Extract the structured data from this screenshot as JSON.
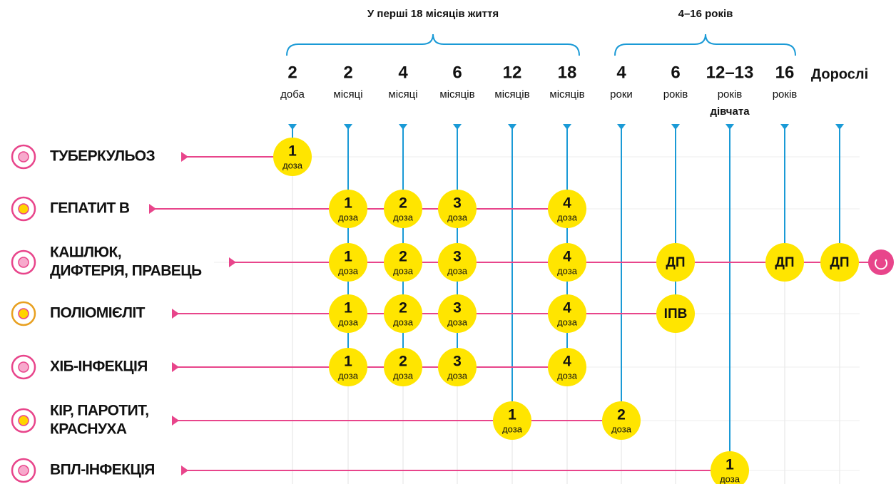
{
  "groups": [
    {
      "label": "У перші 18 місяців життя"
    },
    {
      "label": "4–16 років"
    }
  ],
  "columns": [
    {
      "number": "2",
      "unit": "доба"
    },
    {
      "number": "2",
      "unit": "місяці"
    },
    {
      "number": "4",
      "unit": "місяці"
    },
    {
      "number": "6",
      "unit": "місяців"
    },
    {
      "number": "12",
      "unit": "місяців"
    },
    {
      "number": "18",
      "unit": "місяців"
    },
    {
      "number": "4",
      "unit": "роки"
    },
    {
      "number": "6",
      "unit": "років"
    },
    {
      "number": "12–13",
      "unit": "років",
      "note": "дівчата"
    },
    {
      "number": "16",
      "unit": "років"
    },
    {
      "number": "Дорослі"
    }
  ],
  "rows": [
    {
      "name": [
        "ТУБЕРКУЛЬОЗ"
      ],
      "doses": [
        {
          "number": "1",
          "label": "доза"
        },
        null,
        null,
        null,
        null,
        null,
        null,
        null,
        null,
        null,
        null
      ]
    },
    {
      "name": [
        "ГЕПАТИТ В"
      ],
      "doses": [
        null,
        {
          "number": "1",
          "label": "доза"
        },
        {
          "number": "2",
          "label": "доза"
        },
        {
          "number": "3",
          "label": "доза"
        },
        null,
        {
          "number": "4",
          "label": "доза"
        },
        null,
        null,
        null,
        null,
        null
      ]
    },
    {
      "name": [
        "КАШЛЮК,",
        "ДИФТЕРІЯ, ПРАВЕЦЬ"
      ],
      "doses": [
        null,
        {
          "number": "1",
          "label": "доза"
        },
        {
          "number": "2",
          "label": "доза"
        },
        {
          "number": "3",
          "label": "доза"
        },
        null,
        {
          "number": "4",
          "label": "доза"
        },
        null,
        {
          "label": "ДП"
        },
        null,
        {
          "label": "ДП"
        },
        {
          "label": "ДП"
        }
      ]
    },
    {
      "name": [
        "ПОЛІОМІЄЛІТ"
      ],
      "doses": [
        null,
        {
          "number": "1",
          "label": "доза"
        },
        {
          "number": "2",
          "label": "доза"
        },
        {
          "number": "3",
          "label": "доза"
        },
        null,
        {
          "number": "4",
          "label": "доза"
        },
        null,
        {
          "label": "ІПВ"
        },
        null,
        null,
        null
      ]
    },
    {
      "name": [
        "ХІБ-ІНФЕКЦІЯ"
      ],
      "doses": [
        null,
        {
          "number": "1",
          "label": "доза"
        },
        {
          "number": "2",
          "label": "доза"
        },
        {
          "number": "3",
          "label": "доза"
        },
        null,
        {
          "number": "4",
          "label": "доза"
        },
        null,
        null,
        null,
        null,
        null
      ]
    },
    {
      "name": [
        "КІР, ПАРОТИТ,",
        "КРАСНУХА"
      ],
      "doses": [
        null,
        null,
        null,
        null,
        {
          "number": "1",
          "label": "доза"
        },
        null,
        {
          "number": "2",
          "label": "доза"
        },
        null,
        null,
        null,
        null
      ]
    },
    {
      "name": [
        "ВПЛ-ІНФЕКЦІЯ"
      ],
      "doses": [
        null,
        null,
        null,
        null,
        null,
        null,
        null,
        null,
        {
          "number": "1",
          "label": "доза"
        },
        null,
        null
      ]
    }
  ]
}
